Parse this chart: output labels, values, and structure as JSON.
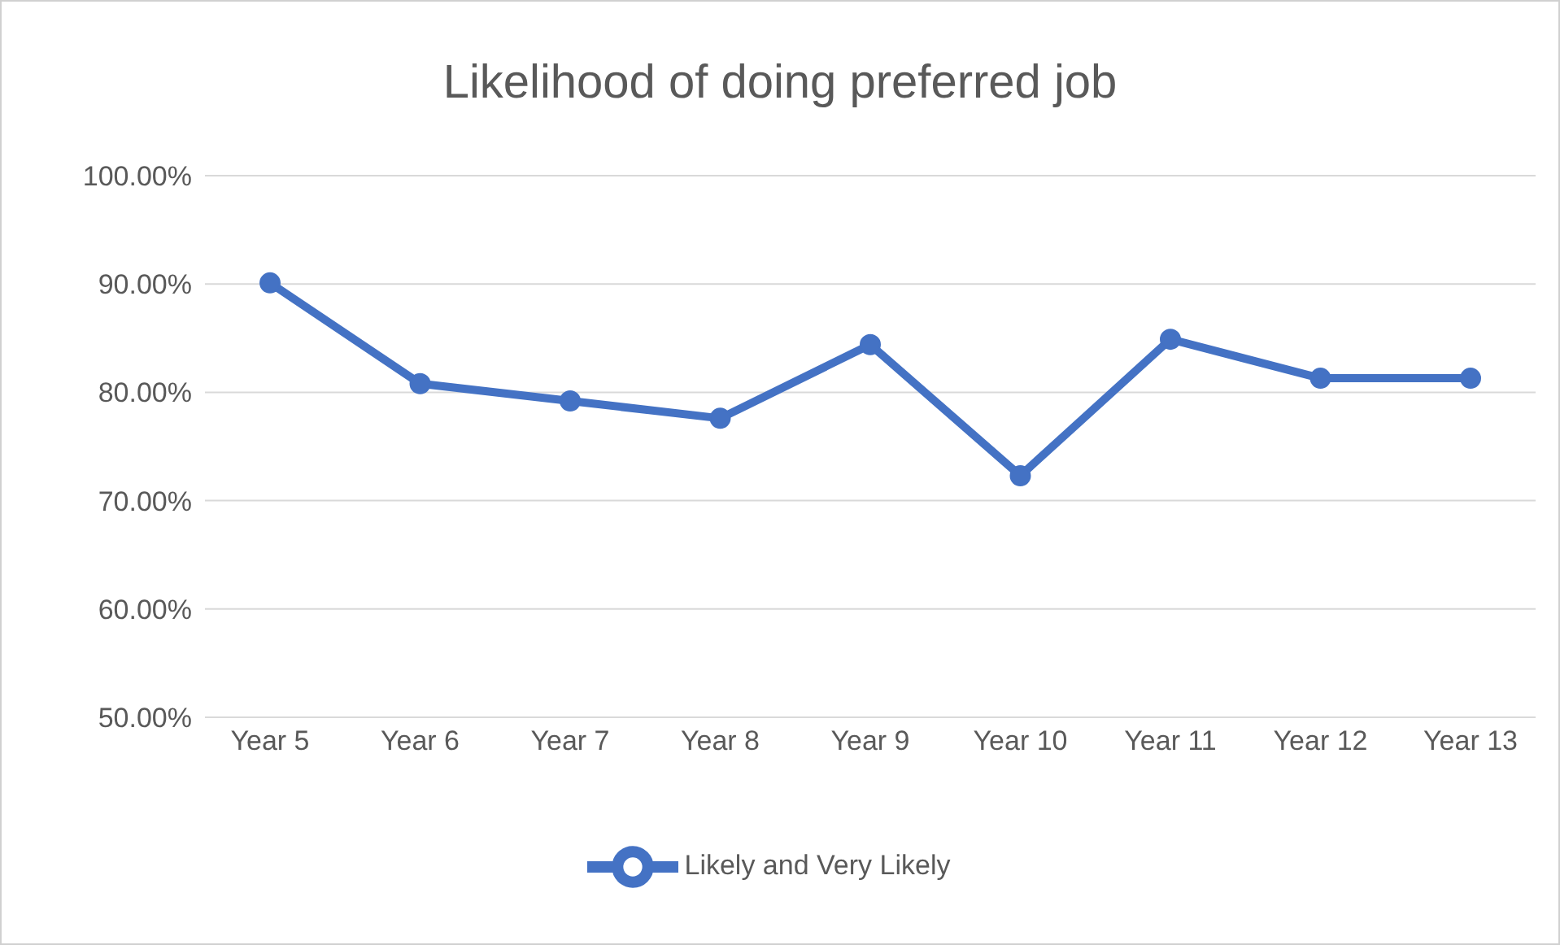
{
  "chart_data": {
    "type": "line",
    "title": "Likelihood of doing preferred job",
    "categories": [
      "Year 5",
      "Year 6",
      "Year 7",
      "Year 8",
      "Year 9",
      "Year 10",
      "Year 11",
      "Year 12",
      "Year 13"
    ],
    "series": [
      {
        "name": "Likely and Very Likely",
        "color": "#4472c4",
        "values": [
          90.1,
          80.8,
          79.2,
          77.6,
          84.4,
          72.3,
          84.9,
          81.3,
          81.3
        ]
      }
    ],
    "ylim": [
      50,
      100
    ],
    "yticks": [
      {
        "value": 50,
        "label": "50.00%"
      },
      {
        "value": 60,
        "label": "60.00%"
      },
      {
        "value": 70,
        "label": "70.00%"
      },
      {
        "value": 80,
        "label": "80.00%"
      },
      {
        "value": 90,
        "label": "90.00%"
      },
      {
        "value": 100,
        "label": "100.00%"
      }
    ],
    "grid": "y",
    "legend": "bottom",
    "marker": "circle",
    "line_style": "solid"
  }
}
